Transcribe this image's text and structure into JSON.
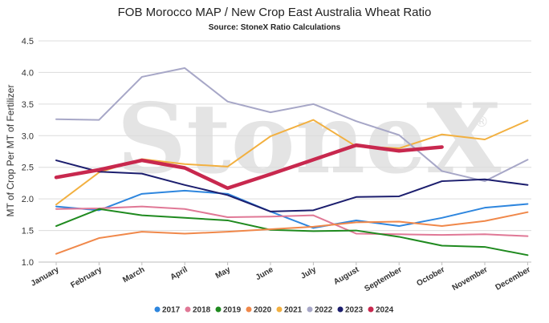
{
  "chart_data": {
    "type": "line",
    "title": "FOB Morocco MAP / New Crop East Australia Wheat Ratio",
    "subtitle": "Source: StoneX Ratio Calculations",
    "ylabel": "MT of Crop Per MT of Fertilizer",
    "xlabel": "",
    "ylim": [
      1.0,
      4.5
    ],
    "yticks": [
      "1.0",
      "1.5",
      "2.0",
      "2.5",
      "3.0",
      "3.5",
      "4.0",
      "4.5"
    ],
    "grid": true,
    "legend_position": "bottom",
    "watermark": "StoneX",
    "watermark_mark": "®",
    "categories": [
      "January",
      "February",
      "March",
      "April",
      "May",
      "June",
      "July",
      "August",
      "September",
      "October",
      "November",
      "December"
    ],
    "series": [
      {
        "name": "2017",
        "color": "#2e86de",
        "values": [
          1.88,
          1.82,
          2.08,
          2.13,
          2.08,
          1.8,
          1.54,
          1.66,
          1.57,
          1.7,
          1.86,
          1.92
        ]
      },
      {
        "name": "2018",
        "color": "#e07896",
        "values": [
          1.84,
          1.85,
          1.88,
          1.84,
          1.71,
          1.72,
          1.74,
          1.45,
          1.44,
          1.43,
          1.44,
          1.41
        ]
      },
      {
        "name": "2019",
        "color": "#1f8a1f",
        "values": [
          1.57,
          1.84,
          1.74,
          1.7,
          1.66,
          1.51,
          1.49,
          1.5,
          1.4,
          1.26,
          1.24,
          1.11
        ]
      },
      {
        "name": "2020",
        "color": "#f0884a",
        "values": [
          1.13,
          1.38,
          1.48,
          1.45,
          1.48,
          1.52,
          1.56,
          1.63,
          1.64,
          1.57,
          1.65,
          1.79
        ]
      },
      {
        "name": "2021",
        "color": "#f2b040",
        "values": [
          1.91,
          2.42,
          2.63,
          2.55,
          2.51,
          2.99,
          3.25,
          2.83,
          2.8,
          3.02,
          2.94,
          3.24
        ]
      },
      {
        "name": "2022",
        "color": "#a7a7c7",
        "values": [
          3.26,
          3.25,
          3.93,
          4.07,
          3.54,
          3.37,
          3.5,
          3.23,
          3.01,
          2.44,
          2.28,
          2.62
        ]
      },
      {
        "name": "2023",
        "color": "#1c1e6e",
        "values": [
          2.61,
          2.43,
          2.4,
          2.22,
          2.06,
          1.8,
          1.82,
          2.03,
          2.04,
          2.28,
          2.31,
          2.22
        ]
      },
      {
        "name": "2024",
        "color": "#c8284e",
        "values": [
          2.34,
          2.46,
          2.61,
          2.49,
          2.17,
          2.39,
          2.62,
          2.85,
          2.76,
          2.82,
          null,
          null
        ]
      }
    ]
  }
}
